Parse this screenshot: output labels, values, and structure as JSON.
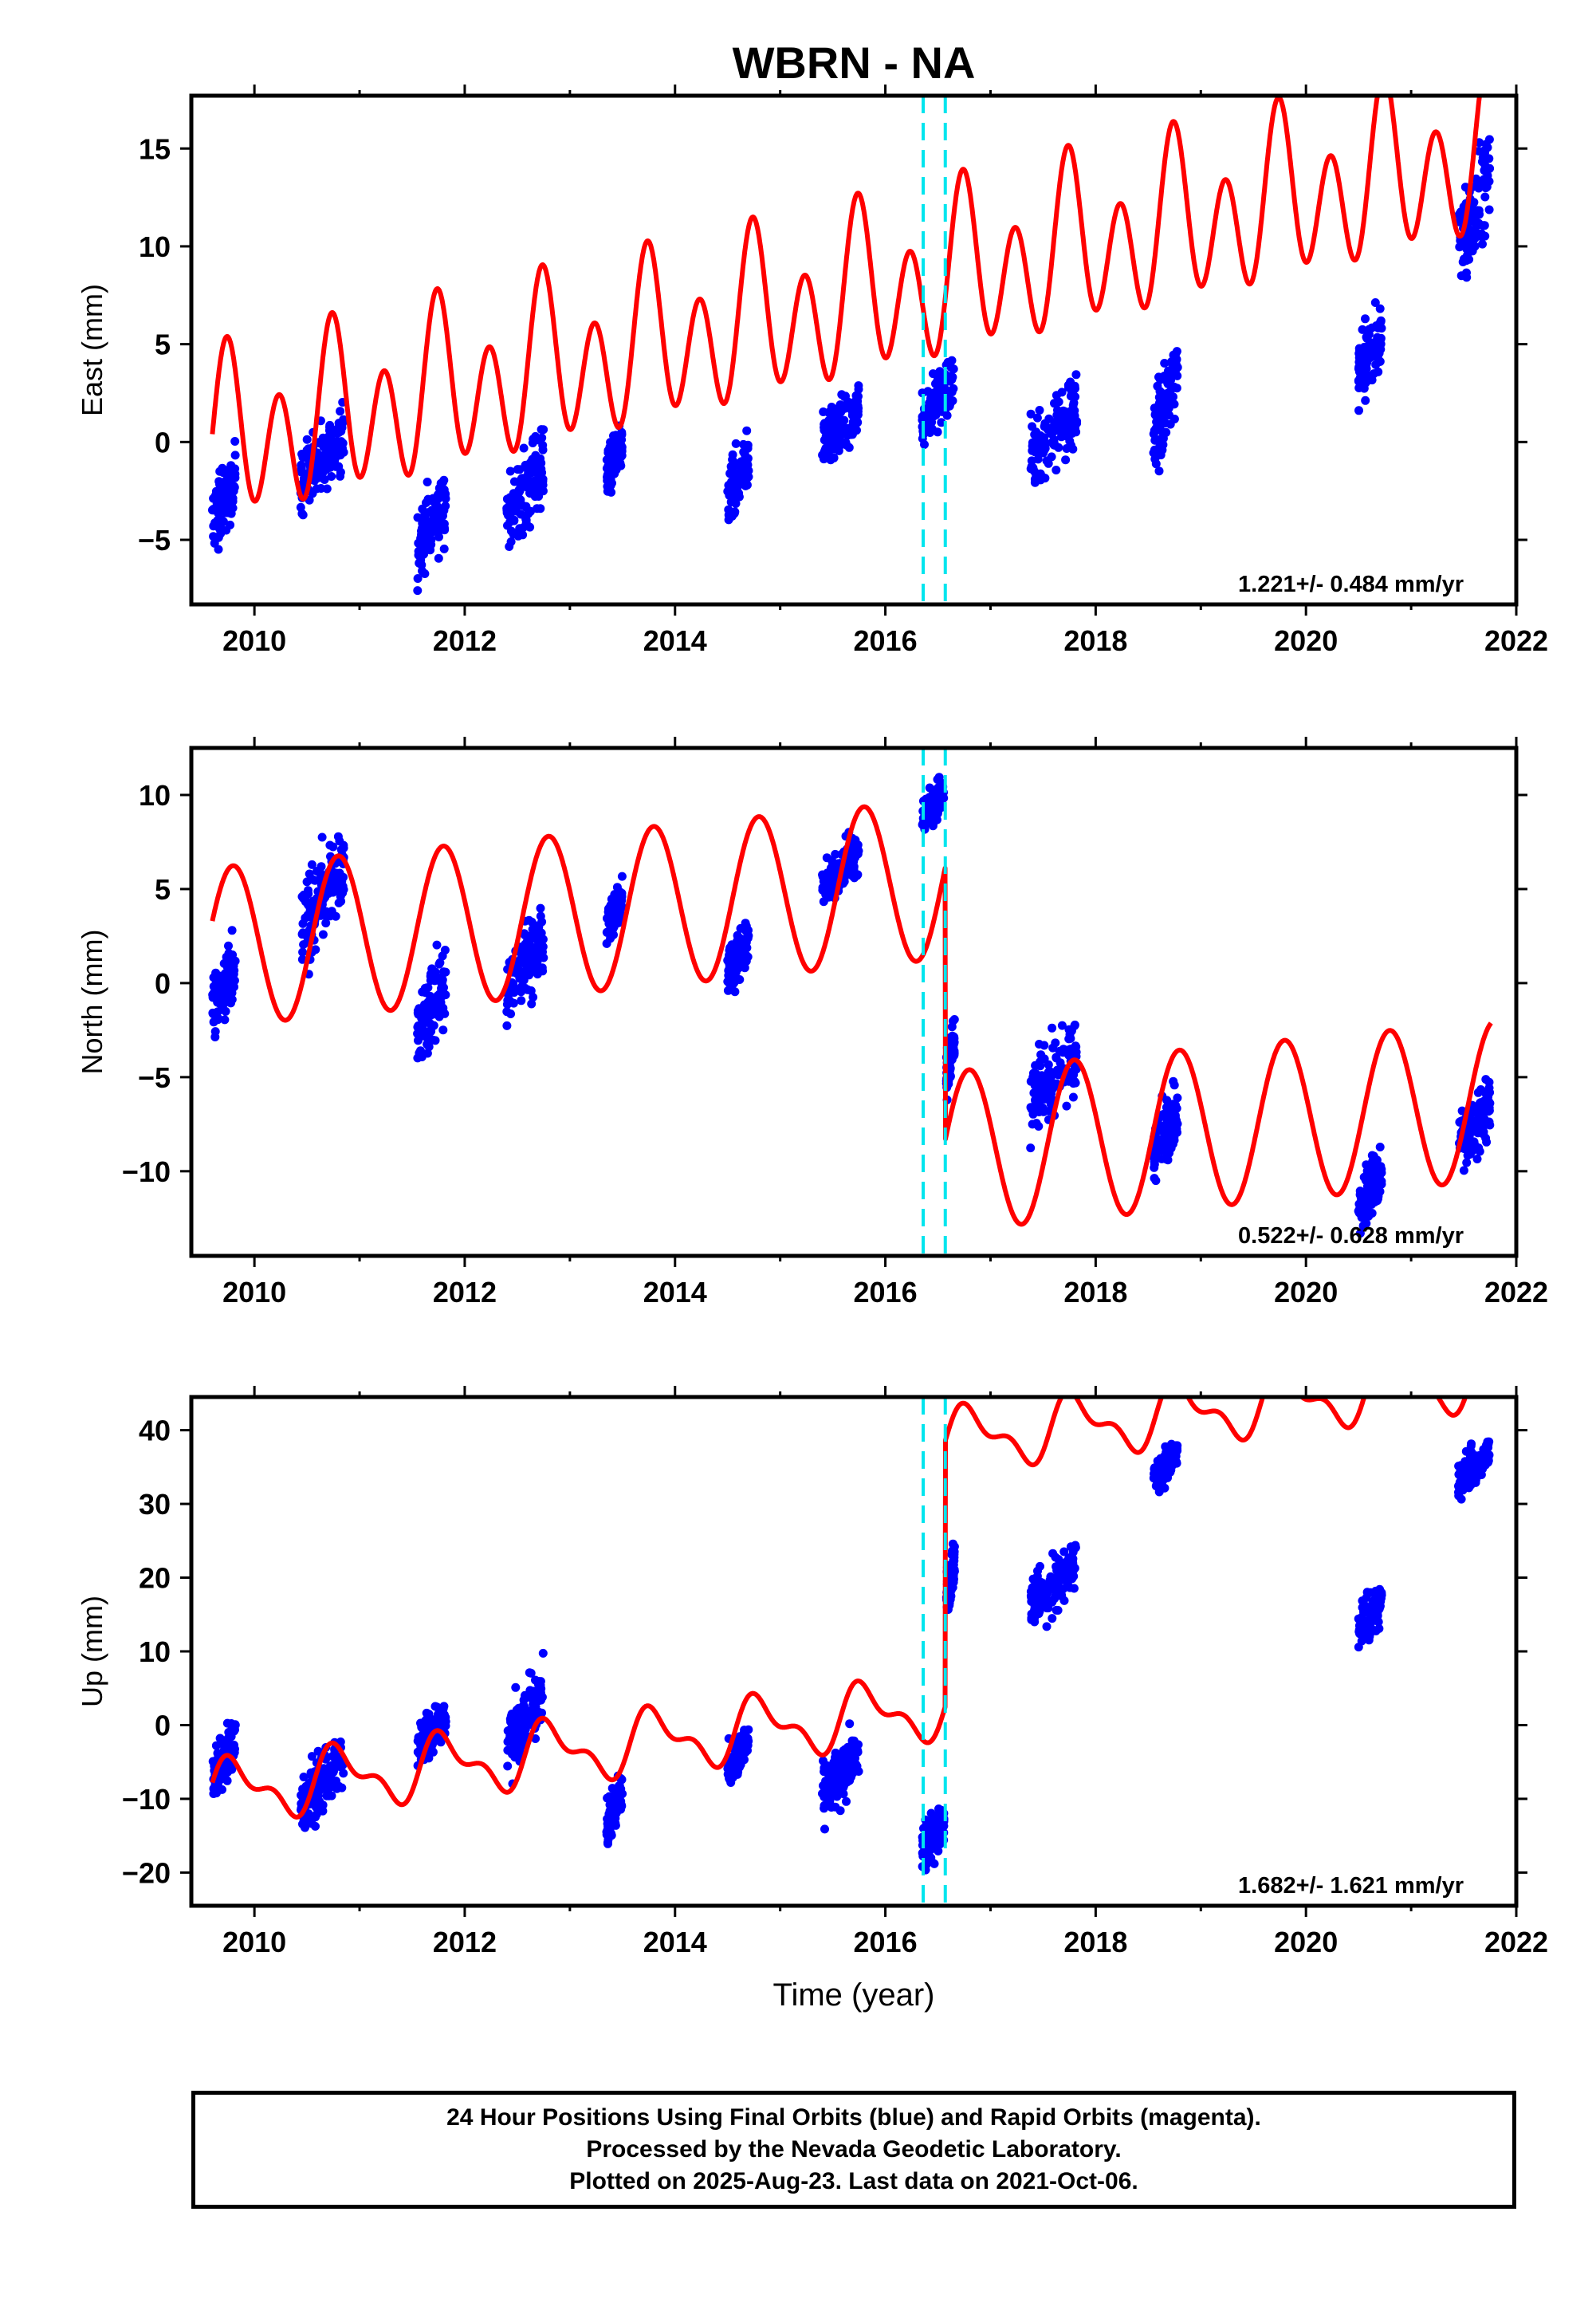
{
  "title": "WBRN - NA",
  "x_tick_labels": [
    "2010",
    "2012",
    "2014",
    "2016",
    "2018",
    "2020",
    "2022"
  ],
  "x_axis_label": "Time (year)",
  "colors": {
    "final_orbits": "#0000ff",
    "model": "#ff0000",
    "event_lines": "#00e5ee",
    "frame": "#000000"
  },
  "event_lines_years": [
    2016.36,
    2016.57
  ],
  "footer": {
    "line1": "24 Hour Positions Using Final Orbits (blue) and Rapid Orbits (magenta).",
    "line2": "Processed by the Nevada Geodetic Laboratory.",
    "line3": "Plotted on 2025-Aug-23. Last data on 2021-Oct-06."
  },
  "chart_data": [
    {
      "type": "scatter",
      "panel": "east",
      "ylabel": "East (mm)",
      "rate_label": "1.221+/- 0.484 mm/yr",
      "xlim": [
        2009.4,
        2022.0
      ],
      "ylim": [
        -8.3,
        17.7
      ],
      "yticks": [
        -5,
        0,
        5,
        10,
        15
      ],
      "series": [
        {
          "name": "Final Orbits",
          "style": "points",
          "clusters": [
            {
              "x": [
                2009.6,
                2009.82
              ],
              "mean": -3.0,
              "spread": 2.6
            },
            {
              "x": [
                2010.44,
                2010.85
              ],
              "mean": -0.8,
              "spread": 2.6
            },
            {
              "x": [
                2011.55,
                2011.82
              ],
              "mean": -4.2,
              "spread": 3.0
            },
            {
              "x": [
                2012.4,
                2012.75
              ],
              "mean": -2.5,
              "spread": 3.2
            },
            {
              "x": [
                2013.35,
                2013.5
              ],
              "mean": -1.0,
              "spread": 1.8
            },
            {
              "x": [
                2014.5,
                2014.7
              ],
              "mean": -1.8,
              "spread": 2.4
            },
            {
              "x": [
                2015.4,
                2015.75
              ],
              "mean": 0.8,
              "spread": 2.0
            },
            {
              "x": [
                2016.35,
                2016.65
              ],
              "mean": 2.2,
              "spread": 2.2
            },
            {
              "x": [
                2017.38,
                2017.82
              ],
              "mean": 0.5,
              "spread": 3.2
            },
            {
              "x": [
                2018.55,
                2018.78
              ],
              "mean": 2.0,
              "spread": 3.2
            },
            {
              "x": [
                2020.5,
                2020.72
              ],
              "mean": 4.5,
              "spread": 2.4
            },
            {
              "x": [
                2021.45,
                2021.75
              ],
              "mean": 12.0,
              "spread": 3.6
            }
          ]
        },
        {
          "name": "Model",
          "style": "line",
          "x_range": [
            2009.6,
            2021.76
          ],
          "model": {
            "a": -0.1,
            "rate": 1.221,
            "ann_sin": 1.5,
            "ann_cos": 1.0,
            "semi_sin": 3.5,
            "semi_cos": -0.5
          }
        }
      ]
    },
    {
      "type": "scatter",
      "panel": "north",
      "ylabel": "North (mm)",
      "rate_label": "0.522+/- 0.628 mm/yr",
      "xlim": [
        2009.4,
        2022.0
      ],
      "ylim": [
        -14.5,
        12.5
      ],
      "yticks": [
        -10,
        -5,
        0,
        5,
        10
      ],
      "series": [
        {
          "name": "Final Orbits",
          "style": "points",
          "clusters": [
            {
              "x": [
                2009.6,
                2009.82
              ],
              "mean": -0.3,
              "spread": 2.8
            },
            {
              "x": [
                2010.44,
                2010.85
              ],
              "mean": 4.5,
              "spread": 3.6
            },
            {
              "x": [
                2011.55,
                2011.82
              ],
              "mean": -1.2,
              "spread": 3.0
            },
            {
              "x": [
                2012.4,
                2012.75
              ],
              "mean": 1.0,
              "spread": 3.2
            },
            {
              "x": [
                2013.35,
                2013.5
              ],
              "mean": 3.8,
              "spread": 1.6
            },
            {
              "x": [
                2014.5,
                2014.7
              ],
              "mean": 1.5,
              "spread": 2.0
            },
            {
              "x": [
                2015.4,
                2015.75
              ],
              "mean": 6.0,
              "spread": 1.8
            },
            {
              "x": [
                2016.35,
                2016.56
              ],
              "mean": 9.5,
              "spread": 1.6
            },
            {
              "x": [
                2016.58,
                2016.66
              ],
              "mean": -4.0,
              "spread": 2.0
            },
            {
              "x": [
                2017.38,
                2017.82
              ],
              "mean": -5.0,
              "spread": 3.4
            },
            {
              "x": [
                2018.55,
                2018.78
              ],
              "mean": -8.0,
              "spread": 2.4
            },
            {
              "x": [
                2020.5,
                2020.72
              ],
              "mean": -11.0,
              "spread": 2.4
            },
            {
              "x": [
                2021.45,
                2021.75
              ],
              "mean": -7.5,
              "spread": 2.4
            }
          ]
        },
        {
          "name": "Model",
          "style": "line",
          "x_range": [
            2009.6,
            2021.76
          ],
          "offset_at": 2016.57,
          "offset": -14.5,
          "model": {
            "a": 1.9,
            "rate": 0.522,
            "ann_sin": 4.0,
            "ann_cos": 1.4,
            "semi_sin": 0.0,
            "semi_cos": 0.0
          }
        }
      ]
    },
    {
      "type": "scatter",
      "panel": "up",
      "ylabel": "Up (mm)",
      "rate_label": "1.682+/- 1.621 mm/yr",
      "xlim": [
        2009.4,
        2022.0
      ],
      "ylim": [
        -24.5,
        44.5
      ],
      "yticks": [
        -20,
        -10,
        0,
        10,
        20,
        30,
        40
      ],
      "series": [
        {
          "name": "Final Orbits",
          "style": "points",
          "clusters": [
            {
              "x": [
                2009.6,
                2009.82
              ],
              "mean": -4.5,
              "spread": 5.5
            },
            {
              "x": [
                2010.44,
                2010.85
              ],
              "mean": -8.0,
              "spread": 6.5
            },
            {
              "x": [
                2011.55,
                2011.82
              ],
              "mean": -1.0,
              "spread": 4.5
            },
            {
              "x": [
                2012.4,
                2012.75
              ],
              "mean": 1.0,
              "spread": 7.5
            },
            {
              "x": [
                2013.35,
                2013.5
              ],
              "mean": -11.0,
              "spread": 4.5
            },
            {
              "x": [
                2014.5,
                2014.7
              ],
              "mean": -4.0,
              "spread": 4.0
            },
            {
              "x": [
                2015.4,
                2015.75
              ],
              "mean": -7.0,
              "spread": 6.0
            },
            {
              "x": [
                2016.35,
                2016.56
              ],
              "mean": -15.0,
              "spread": 5.0
            },
            {
              "x": [
                2016.58,
                2016.66
              ],
              "mean": 20.0,
              "spread": 5.0
            },
            {
              "x": [
                2017.38,
                2017.82
              ],
              "mean": 19.0,
              "spread": 6.0
            },
            {
              "x": [
                2018.55,
                2018.78
              ],
              "mean": 35.0,
              "spread": 3.8
            },
            {
              "x": [
                2020.5,
                2020.72
              ],
              "mean": 15.0,
              "spread": 4.5
            },
            {
              "x": [
                2021.45,
                2021.75
              ],
              "mean": 35.0,
              "spread": 3.8
            }
          ]
        },
        {
          "name": "Model",
          "style": "line",
          "x_range": [
            2009.6,
            2021.76
          ],
          "offset_at": 2016.57,
          "offset": 36.0,
          "model": {
            "a": -9.2,
            "rate": 1.682,
            "ann_sin": 3.5,
            "ann_cos": 0.8,
            "semi_sin": 1.8,
            "semi_cos": 0.6
          }
        }
      ]
    }
  ]
}
